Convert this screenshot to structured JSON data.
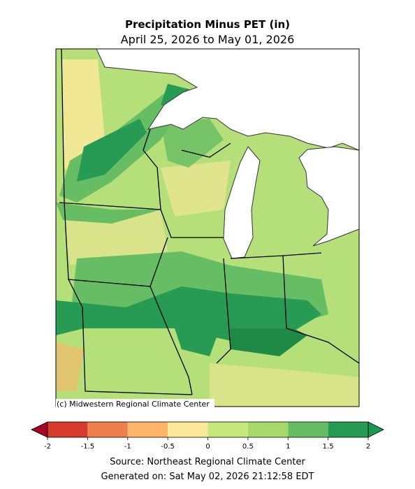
{
  "title": "Precipitation Minus PET (in)",
  "subtitle": "April 25, 2026 to May 01, 2026",
  "map": {
    "credit": "(c) Midwestern Regional Climate Center"
  },
  "colorbar": {
    "ticks": [
      -2,
      -1.5,
      -1,
      -0.5,
      0,
      0.5,
      1,
      1.5,
      2
    ],
    "colors": [
      "#d73a2a",
      "#ef7f4c",
      "#fdb468",
      "#fee99b",
      "#c6e77c",
      "#a6d96a",
      "#66bd63",
      "#279a53"
    ],
    "under_color": "#a50026",
    "over_color": "#1a9850"
  },
  "footer": {
    "source": "Source: Northeast Regional Climate Center",
    "generated": "Generated on: Sat May 02, 2026 21:12:58 EDT"
  }
}
